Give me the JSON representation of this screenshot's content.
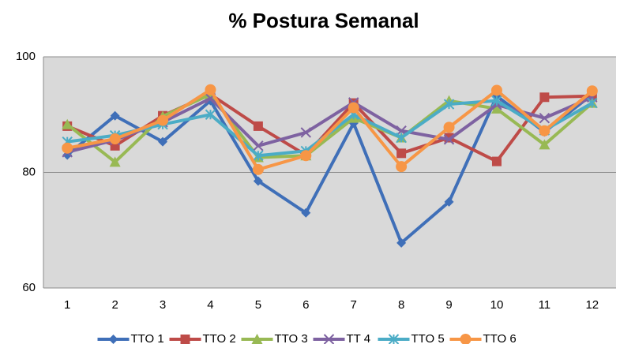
{
  "chart_data": {
    "type": "line",
    "title": "% Postura Semanal",
    "categories": [
      "1",
      "2",
      "3",
      "4",
      "5",
      "6",
      "7",
      "8",
      "9",
      "10",
      "11",
      "12"
    ],
    "series": [
      {
        "name": "TTO 1",
        "color": "#3f6fb8",
        "marker": "diamond",
        "values": [
          83,
          89.8,
          85.3,
          92.4,
          78.5,
          73,
          88.5,
          67.8,
          74.9,
          93.2,
          87,
          93.5
        ]
      },
      {
        "name": "TTO 2",
        "color": "#be4b48",
        "marker": "square",
        "values": [
          88,
          84.6,
          89.8,
          93.5,
          88,
          83,
          92,
          83.3,
          86,
          81.9,
          93,
          93.2
        ]
      },
      {
        "name": "TTO 3",
        "color": "#98b954",
        "marker": "triangle",
        "values": [
          88.3,
          81.8,
          89.7,
          93.5,
          82.6,
          82.9,
          89.4,
          86,
          92.4,
          91,
          84.8,
          92
        ]
      },
      {
        "name": "TT 4",
        "color": "#7e62a1",
        "marker": "x",
        "values": [
          83.5,
          85.6,
          88.7,
          92.8,
          84.6,
          86.9,
          92.1,
          87.2,
          85.7,
          91.7,
          89.4,
          93
        ]
      },
      {
        "name": "TTO 5",
        "color": "#4bacc6",
        "marker": "star",
        "values": [
          85.3,
          86.4,
          88.3,
          90,
          82.9,
          83.7,
          90,
          86,
          91.8,
          92.4,
          87.3,
          92
        ]
      },
      {
        "name": "TTO 6",
        "color": "#f79646",
        "marker": "circle",
        "values": [
          84.2,
          85.8,
          89,
          94.3,
          80.5,
          82.9,
          91.2,
          81,
          87.8,
          94.2,
          87.2,
          94.1
        ]
      }
    ],
    "ylim": [
      60,
      100
    ],
    "yticks": [
      60,
      80,
      100
    ],
    "grid": true,
    "legend": "bottom"
  }
}
